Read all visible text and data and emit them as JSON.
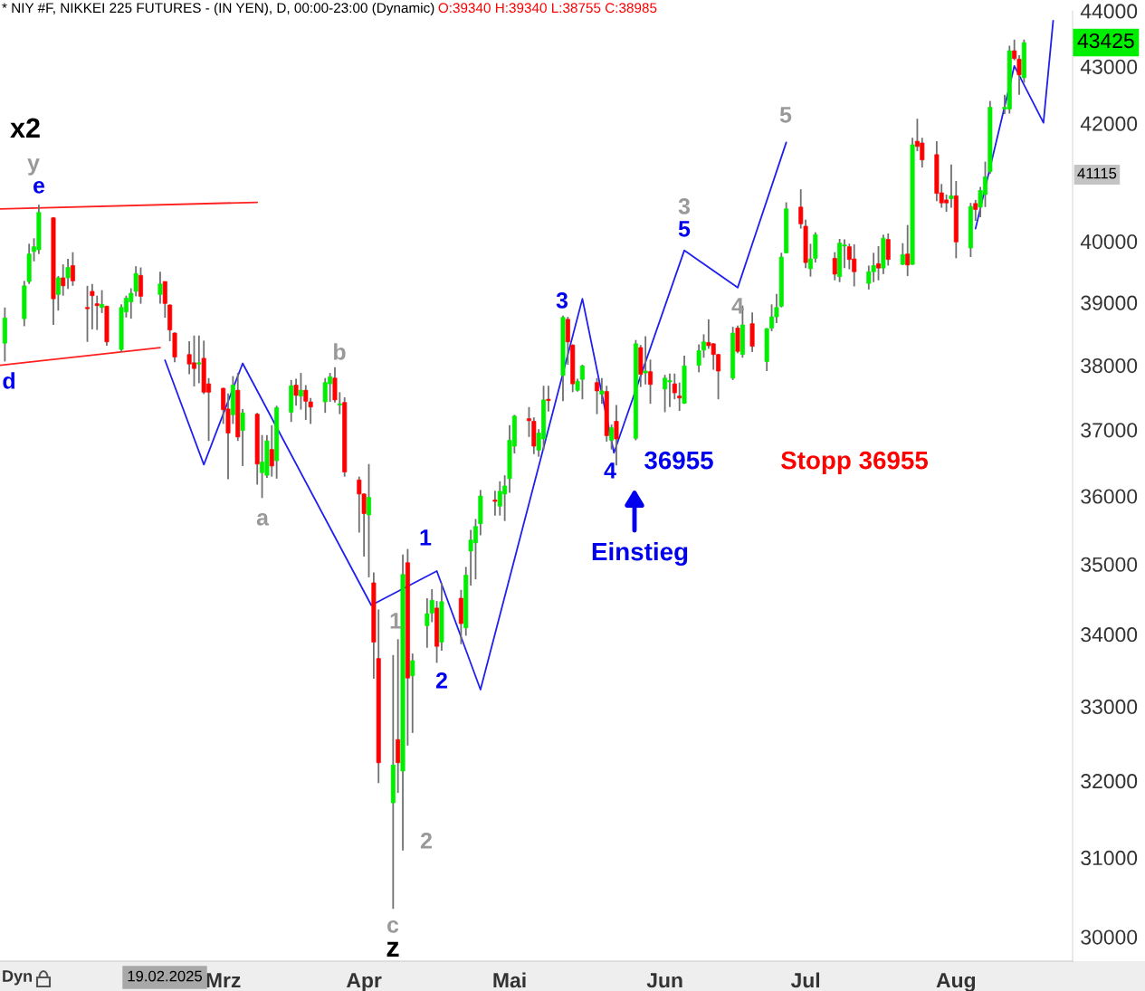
{
  "chart_data": {
    "type": "candlestick",
    "title": "* NIY #F, NIKKEI 225 FUTURES - (IN YEN), D, 00:00-23:00 (Dynamic)",
    "subtitle": "O:39340 H:39340 L:38755 C:38985",
    "log": true,
    "xlim": [
      "2025-01-16",
      "2025-08-25"
    ],
    "xticks": [
      {
        "value": "2025-03-03",
        "label": "Mrz"
      },
      {
        "value": "2025-04-01",
        "label": "Apr"
      },
      {
        "value": "2025-05-01",
        "label": "Mai"
      },
      {
        "value": "2025-06-02",
        "label": "Jun"
      },
      {
        "value": "2025-07-01",
        "label": "Jul"
      },
      {
        "value": "2025-08-01",
        "label": "Aug"
      }
    ],
    "ylim": [
      29700,
      44000
    ],
    "yticks": [
      30000,
      31000,
      32000,
      33000,
      34000,
      35000,
      36000,
      37000,
      38000,
      39000,
      40000,
      42000,
      43000,
      44000
    ],
    "series": [
      {
        "x": [
          "2025-01-17",
          "2025-01-21",
          "2025-01-22",
          "2025-01-23",
          "2025-01-24",
          "2025-01-27",
          "2025-01-28",
          "2025-01-29",
          "2025-01-30",
          "2025-01-31",
          "2025-02-03",
          "2025-02-04",
          "2025-02-05",
          "2025-02-06",
          "2025-02-07",
          "2025-02-10",
          "2025-02-11",
          "2025-02-12",
          "2025-02-13",
          "2025-02-14",
          "2025-02-18",
          "2025-02-19",
          "2025-02-20",
          "2025-02-21",
          "2025-02-24",
          "2025-02-25",
          "2025-02-26",
          "2025-02-27",
          "2025-02-28",
          "2025-03-03",
          "2025-03-04",
          "2025-03-05",
          "2025-03-06",
          "2025-03-07",
          "2025-03-10",
          "2025-03-11",
          "2025-03-12",
          "2025-03-13",
          "2025-03-14",
          "2025-03-17",
          "2025-03-18",
          "2025-03-19",
          "2025-03-20",
          "2025-03-21",
          "2025-03-24",
          "2025-03-25",
          "2025-03-26",
          "2025-03-27",
          "2025-03-28",
          "2025-03-31",
          "2025-04-01",
          "2025-04-02",
          "2025-04-03",
          "2025-04-04",
          "2025-04-07",
          "2025-04-08",
          "2025-04-09",
          "2025-04-10",
          "2025-04-11",
          "2025-04-14",
          "2025-04-15",
          "2025-04-16",
          "2025-04-17",
          "2025-04-21",
          "2025-04-22",
          "2025-04-23",
          "2025-04-24",
          "2025-04-25",
          "2025-04-28",
          "2025-04-29",
          "2025-04-30",
          "2025-05-01",
          "2025-05-02",
          "2025-05-05",
          "2025-05-06",
          "2025-05-07",
          "2025-05-08",
          "2025-05-09",
          "2025-05-12",
          "2025-05-13",
          "2025-05-14",
          "2025-05-15",
          "2025-05-16",
          "2025-05-19",
          "2025-05-20",
          "2025-05-21",
          "2025-05-22",
          "2025-05-23",
          "2025-05-27",
          "2025-05-28",
          "2025-05-29",
          "2025-05-30",
          "2025-06-02",
          "2025-06-03",
          "2025-06-04",
          "2025-06-05",
          "2025-06-06",
          "2025-06-09",
          "2025-06-10",
          "2025-06-11",
          "2025-06-12",
          "2025-06-13",
          "2025-06-16",
          "2025-06-17",
          "2025-06-18",
          "2025-06-20",
          "2025-06-23",
          "2025-06-24",
          "2025-06-25",
          "2025-06-26",
          "2025-06-27",
          "2025-06-30",
          "2025-07-01",
          "2025-07-02",
          "2025-07-03",
          "2025-07-07",
          "2025-07-08",
          "2025-07-09",
          "2025-07-10",
          "2025-07-11",
          "2025-07-14",
          "2025-07-15",
          "2025-07-16",
          "2025-07-17",
          "2025-07-18",
          "2025-07-21",
          "2025-07-22",
          "2025-07-23",
          "2025-07-24",
          "2025-07-25",
          "2025-07-28",
          "2025-07-29",
          "2025-07-30",
          "2025-07-31",
          "2025-08-01",
          "2025-08-04",
          "2025-08-05",
          "2025-08-06",
          "2025-08-07",
          "2025-08-08",
          "2025-08-11",
          "2025-08-12",
          "2025-08-13",
          "2025-08-14",
          "2025-08-15"
        ],
        "ohlc": [
          [
            38350,
            38920,
            38060,
            38750
          ],
          [
            38740,
            39350,
            38620,
            39270
          ],
          [
            39340,
            39960,
            39300,
            39790
          ],
          [
            39830,
            40050,
            39670,
            39910
          ],
          [
            39860,
            40610,
            39790,
            40480
          ],
          [
            40390,
            40400,
            38640,
            39060
          ],
          [
            39130,
            39430,
            38870,
            39400
          ],
          [
            39400,
            39620,
            39110,
            39270
          ],
          [
            39400,
            39710,
            39220,
            39570
          ],
          [
            39600,
            39820,
            39270,
            39350
          ],
          [
            38920,
            39270,
            38370,
            38900
          ],
          [
            39180,
            39300,
            38570,
            39110
          ],
          [
            38980,
            39110,
            38560,
            38950
          ],
          [
            38920,
            39200,
            38830,
            38970
          ],
          [
            38940,
            38950,
            38310,
            38370
          ],
          [
            38250,
            38970,
            38210,
            38920
          ],
          [
            38850,
            39110,
            38760,
            39070
          ],
          [
            39010,
            39230,
            38740,
            39150
          ],
          [
            39180,
            39590,
            39100,
            39470
          ],
          [
            39440,
            39570,
            38980,
            39100
          ],
          [
            39130,
            39500,
            38980,
            39300
          ],
          [
            39340,
            39340,
            38755,
            38985
          ],
          [
            38960,
            38970,
            38380,
            38560
          ],
          [
            38510,
            38520,
            38050,
            38130
          ],
          [
            38170,
            38380,
            37860,
            38020
          ],
          [
            38040,
            38470,
            37670,
            37950
          ],
          [
            38020,
            38470,
            37720,
            38040
          ],
          [
            38110,
            38390,
            37550,
            37580
          ],
          [
            37710,
            37800,
            36830,
            37580
          ],
          [
            37640,
            37650,
            37090,
            37310
          ],
          [
            37320,
            37560,
            36250,
            36950
          ],
          [
            37230,
            37830,
            37090,
            37690
          ],
          [
            37610,
            37880,
            36830,
            36890
          ],
          [
            36990,
            37320,
            36450,
            37260
          ],
          [
            37240,
            37260,
            36170,
            36480
          ],
          [
            36350,
            36920,
            35970,
            36510
          ],
          [
            36310,
            36920,
            36270,
            36830
          ],
          [
            36700,
            37070,
            36290,
            36450
          ],
          [
            36530,
            37370,
            36260,
            37340
          ],
          [
            37270,
            37770,
            37120,
            37680
          ],
          [
            37690,
            37790,
            37370,
            37530
          ],
          [
            37520,
            37880,
            37310,
            37610
          ],
          [
            37610,
            37690,
            37150,
            37440
          ],
          [
            37430,
            37490,
            37090,
            37350
          ],
          [
            37430,
            37800,
            37260,
            37730
          ],
          [
            37710,
            37880,
            37430,
            37820
          ],
          [
            37800,
            37970,
            37420,
            37460
          ],
          [
            37380,
            37580,
            37240,
            37400
          ],
          [
            37420,
            37500,
            36290,
            36360
          ],
          [
            36240,
            36290,
            35460,
            36030
          ],
          [
            36030,
            36040,
            35110,
            35740
          ],
          [
            35720,
            36480,
            34810,
            35980
          ],
          [
            34730,
            34880,
            33380,
            33890
          ],
          [
            33660,
            34350,
            31970,
            32240
          ],
          [
            31710,
            33710,
            30350,
            32210
          ],
          [
            32550,
            33930,
            31840,
            32240
          ],
          [
            32130,
            35140,
            31090,
            34850
          ],
          [
            35020,
            35220,
            32470,
            33390
          ],
          [
            33420,
            33730,
            32640,
            33630
          ],
          [
            34120,
            34510,
            33810,
            34290
          ],
          [
            34300,
            34640,
            34170,
            34480
          ],
          [
            34370,
            34470,
            33600,
            33830
          ],
          [
            33890,
            34730,
            33770,
            34460
          ],
          [
            34510,
            34630,
            33860,
            34150
          ],
          [
            34090,
            34960,
            33980,
            34840
          ],
          [
            35190,
            35500,
            34690,
            35350
          ],
          [
            35310,
            35660,
            34780,
            35550
          ],
          [
            35590,
            36090,
            35420,
            36000
          ],
          [
            35940,
            36080,
            35710,
            35920
          ],
          [
            35850,
            36220,
            35710,
            36070
          ],
          [
            36030,
            36310,
            35630,
            36150
          ],
          [
            36260,
            37070,
            36050,
            36840
          ],
          [
            36750,
            37230,
            36640,
            37210
          ],
          [
            37170,
            37350,
            36890,
            37140
          ],
          [
            37130,
            37190,
            36630,
            36750
          ],
          [
            36690,
            37010,
            36590,
            36950
          ],
          [
            36860,
            37680,
            36690,
            37460
          ],
          [
            37470,
            37680,
            37280,
            37450
          ],
          [
            37840,
            38790,
            37440,
            38760
          ],
          [
            38730,
            38770,
            38010,
            38370
          ],
          [
            38320,
            38330,
            37580,
            37710
          ],
          [
            37610,
            37790,
            37590,
            37750
          ],
          [
            37780,
            38010,
            37470,
            37990
          ],
          [
            37730,
            37800,
            37240,
            37600
          ],
          [
            37550,
            37800,
            37400,
            37600
          ],
          [
            37590,
            37680,
            36820,
            36910
          ],
          [
            36840,
            37080,
            36700,
            37030
          ],
          [
            37130,
            37380,
            36460,
            36860
          ],
          [
            36870,
            38400,
            36840,
            38340
          ],
          [
            38280,
            38320,
            37660,
            37860
          ],
          [
            37880,
            38460,
            37700,
            37910
          ],
          [
            37900,
            38090,
            37400,
            37700
          ],
          [
            37630,
            37850,
            37270,
            37800
          ],
          [
            37740,
            37870,
            37350,
            37760
          ],
          [
            37710,
            37870,
            37470,
            37570
          ],
          [
            37520,
            37730,
            37290,
            37490
          ],
          [
            37410,
            38150,
            37400,
            37990
          ],
          [
            38000,
            38330,
            37890,
            38230
          ],
          [
            38240,
            38490,
            38120,
            38370
          ],
          [
            38360,
            38730,
            38260,
            38310
          ],
          [
            38340,
            38350,
            37930,
            38170
          ],
          [
            38170,
            38180,
            37470,
            37910
          ],
          [
            37800,
            38610,
            37770,
            38510
          ],
          [
            38590,
            38630,
            38190,
            38220
          ],
          [
            38170,
            38950,
            38120,
            38640
          ],
          [
            38660,
            38840,
            38210,
            38300
          ],
          [
            38060,
            38590,
            37910,
            38580
          ],
          [
            38590,
            38970,
            38540,
            38770
          ],
          [
            38770,
            39140,
            38670,
            38920
          ],
          [
            38940,
            39810,
            38920,
            39740
          ],
          [
            39810,
            40650,
            39800,
            40540
          ],
          [
            40570,
            40870,
            40210,
            40290
          ],
          [
            40250,
            40360,
            39560,
            39650
          ],
          [
            39550,
            39960,
            39420,
            39710
          ],
          [
            39720,
            40150,
            39650,
            40110
          ],
          [
            39720,
            39820,
            39360,
            39460
          ],
          [
            39420,
            40040,
            39330,
            39970
          ],
          [
            39920,
            40030,
            39560,
            39940
          ],
          [
            39910,
            39960,
            39540,
            39700
          ],
          [
            39710,
            39950,
            39260,
            39500
          ],
          [
            39310,
            39600,
            39210,
            39500
          ],
          [
            39500,
            39810,
            39330,
            39600
          ],
          [
            39630,
            39920,
            39360,
            39560
          ],
          [
            39560,
            40110,
            39460,
            40050
          ],
          [
            40030,
            40130,
            39600,
            39700
          ],
          [
            39620,
            39970,
            39610,
            39780
          ],
          [
            39790,
            40270,
            39430,
            39610
          ],
          [
            39620,
            41750,
            39610,
            41630
          ],
          [
            41690,
            42080,
            41520,
            41600
          ],
          [
            41660,
            41750,
            41240,
            41370
          ],
          [
            41460,
            41690,
            40670,
            40800
          ],
          [
            40810,
            40960,
            40560,
            40640
          ],
          [
            40690,
            40780,
            40490,
            40640
          ],
          [
            40710,
            41290,
            40560,
            40760
          ],
          [
            40760,
            41010,
            39720,
            39990
          ],
          [
            39890,
            40640,
            39740,
            40580
          ],
          [
            40630,
            40690,
            40340,
            40530
          ],
          [
            40570,
            40910,
            40400,
            40850
          ],
          [
            40780,
            41340,
            40570,
            41080
          ],
          [
            41170,
            42390,
            41130,
            42280
          ],
          [
            42250,
            42500,
            42160,
            42280
          ],
          [
            42250,
            43370,
            42170,
            43280
          ],
          [
            43280,
            43480,
            43110,
            43140
          ],
          [
            43130,
            43200,
            42500,
            42850
          ],
          [
            42800,
            43480,
            42710,
            43425
          ]
        ],
        "colors": [
          "#00ee00",
          "#00ee00",
          "#00ee00",
          "#00ee00",
          "#00ee00",
          "#ff0000",
          "#00ee00",
          "#ff0000",
          "#00ee00",
          "#ff0000",
          "#ff0000",
          "#ff0000",
          "#ff0000",
          "#00ee00",
          "#ff0000",
          "#00ee00",
          "#00ee00",
          "#00ee00",
          "#00ee00",
          "#ff0000",
          "#00ee00",
          "#ff0000",
          "#ff0000",
          "#ff0000",
          "#ff0000",
          "#ff0000",
          "#00ee00",
          "#ff0000",
          "#ff0000",
          "#ff0000",
          "#ff0000",
          "#00ee00",
          "#ff0000",
          "#00ee00",
          "#ff0000",
          "#00ee00",
          "#00ee00",
          "#ff0000",
          "#00ee00",
          "#00ee00",
          "#ff0000",
          "#00ee00",
          "#ff0000",
          "#ff0000",
          "#00ee00",
          "#00ee00",
          "#ff0000",
          "#00ee00",
          "#ff0000",
          "#ff0000",
          "#ff0000",
          "#00ee00",
          "#ff0000",
          "#ff0000",
          "#00ee00",
          "#ff0000",
          "#00ee00",
          "#ff0000",
          "#00ee00",
          "#00ee00",
          "#00ee00",
          "#ff0000",
          "#00ee00",
          "#ff0000",
          "#00ee00",
          "#00ee00",
          "#00ee00",
          "#00ee00",
          "#ff0000",
          "#00ee00",
          "#00ee00",
          "#00ee00",
          "#00ee00",
          "#ff0000",
          "#ff0000",
          "#00ee00",
          "#00ee00",
          "#ff0000",
          "#00ee00",
          "#ff0000",
          "#ff0000",
          "#00ee00",
          "#00ee00",
          "#ff0000",
          "#00ee00",
          "#ff0000",
          "#00ee00",
          "#ff0000",
          "#00ee00",
          "#ff0000",
          "#00ee00",
          "#ff0000",
          "#00ee00",
          "#00ee00",
          "#ff0000",
          "#ff0000",
          "#00ee00",
          "#00ee00",
          "#00ee00",
          "#ff0000",
          "#ff0000",
          "#ff0000",
          "#00ee00",
          "#ff0000",
          "#00ee00",
          "#ff0000",
          "#00ee00",
          "#00ee00",
          "#00ee00",
          "#00ee00",
          "#00ee00",
          "#ff0000",
          "#ff0000",
          "#00ee00",
          "#00ee00",
          "#ff0000",
          "#00ee00",
          "#00ee00",
          "#ff0000",
          "#ff0000",
          "#00ee00",
          "#00ee00",
          "#ff0000",
          "#00ee00",
          "#ff0000",
          "#00ee00",
          "#ff0000",
          "#00ee00",
          "#ff0000",
          "#ff0000",
          "#ff0000",
          "#ff0000",
          "#ff0000",
          "#00ee00",
          "#ff0000",
          "#00ee00",
          "#ff0000",
          "#00ee00",
          "#00ee00",
          "#00ee00",
          "#00ee00",
          "#00ee00",
          "#ff0000",
          "#ff0000",
          "#00ee00"
        ]
      },
      {
        "type": "line",
        "color": "#2020ee",
        "x": [
          "2025-02-19",
          "2025-02-27",
          "2025-03-07",
          "2025-04-02T12:00",
          "2025-04-16",
          "2025-04-25",
          "2025-05-16",
          "2025-05-22T12:00",
          "2025-06-06",
          "2025-06-17",
          "2025-06-27"
        ],
        "values": [
          38080,
          36470,
          38030,
          34410,
          34900,
          33230,
          39060,
          36650,
          39850,
          39240,
          41670
        ]
      },
      {
        "type": "line",
        "color": "#2020ee",
        "x": [
          "2025-08-05",
          "2025-08-13",
          "2025-08-19",
          "2025-08-21"
        ],
        "values": [
          40210,
          43010,
          42010,
          43820
        ]
      },
      {
        "type": "line",
        "color": "#ff2020",
        "x": [
          "2025-01-16",
          "2025-03-10"
        ],
        "values": [
          40540,
          40650
        ]
      },
      {
        "type": "line",
        "color": "#ff2020",
        "x": [
          "2025-01-16",
          "2025-02-18"
        ],
        "values": [
          38000,
          38280
        ]
      }
    ],
    "annotations": [
      "x2",
      "y",
      "e",
      "d",
      "a",
      "b",
      "c",
      "z",
      "1",
      "1",
      "2",
      "2",
      "3",
      "4",
      "36955",
      "Einstieg",
      "Stopp 36955",
      "3",
      "5",
      "4",
      "5",
      "43425",
      "41115",
      "19.02.2025",
      "Dyn"
    ]
  }
}
